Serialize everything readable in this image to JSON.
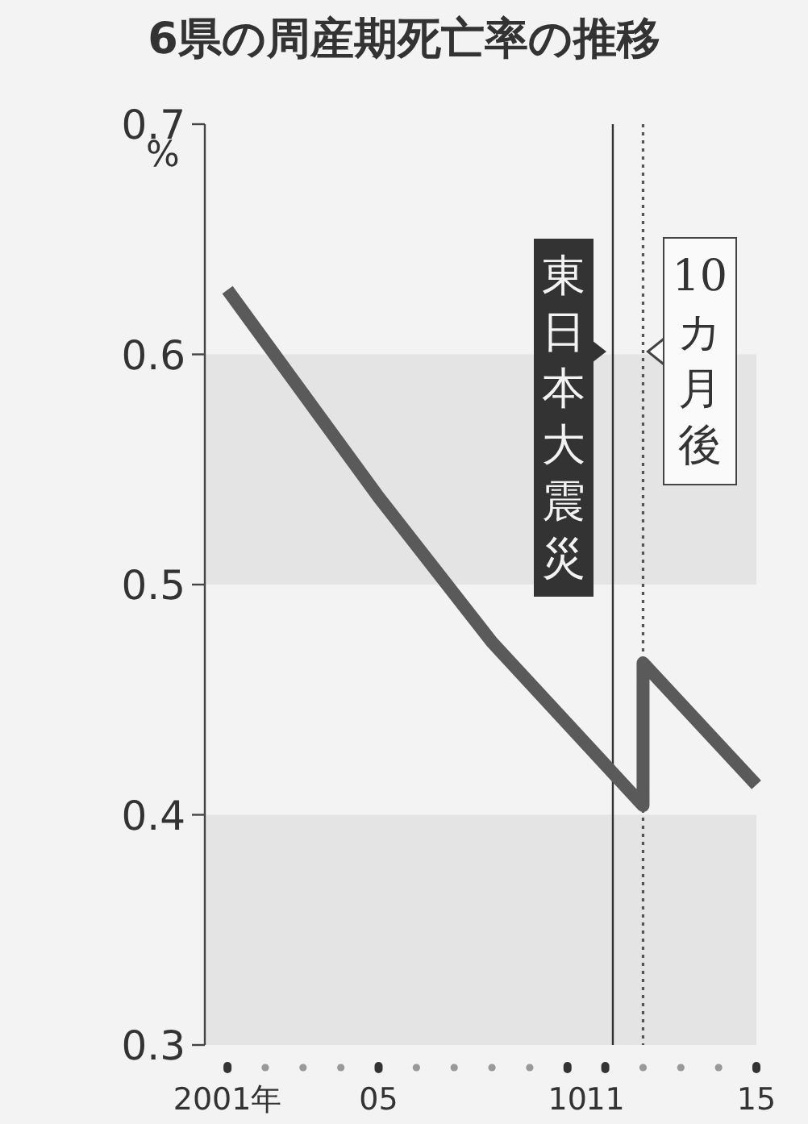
{
  "chart_data": {
    "type": "line",
    "title": "6県の周産期死亡率の推移",
    "ylabel": "%",
    "x": [
      2001,
      2005,
      2008,
      2012,
      2012,
      2015
    ],
    "series": [
      {
        "color": "#5a5a5a",
        "values": [
          0.628,
          0.538,
          0.475,
          0.404,
          0.466,
          0.413
        ]
      }
    ],
    "xlim": [
      2000.4,
      2015
    ],
    "ylim": [
      0.3,
      0.7
    ],
    "xticks": [
      {
        "value": 2001,
        "label": "2001年"
      },
      {
        "value": 2005,
        "label": "05"
      },
      {
        "value": 2010,
        "label": "10"
      },
      {
        "value": 2011,
        "label": "11"
      },
      {
        "value": 2015,
        "label": "15"
      }
    ],
    "yticks": [
      0.3,
      0.4,
      0.5,
      0.6,
      0.7
    ],
    "ref_lines": [
      {
        "axis": "x",
        "value": 2011.2,
        "label": "東日本大震災",
        "color": "#333333",
        "line_style": "solid"
      },
      {
        "axis": "x",
        "value": 2012.0,
        "label": "10カ月後",
        "color": "#555555",
        "line_style": "dotted"
      }
    ],
    "bands": [
      {
        "axis": "y",
        "from": 0.5,
        "to": 0.6,
        "color": "#e4e4e4"
      },
      {
        "axis": "y",
        "from": 0.3,
        "to": 0.4,
        "color": "#e4e4e4"
      }
    ],
    "marker": "none",
    "line_style": "solid",
    "grid": false
  }
}
